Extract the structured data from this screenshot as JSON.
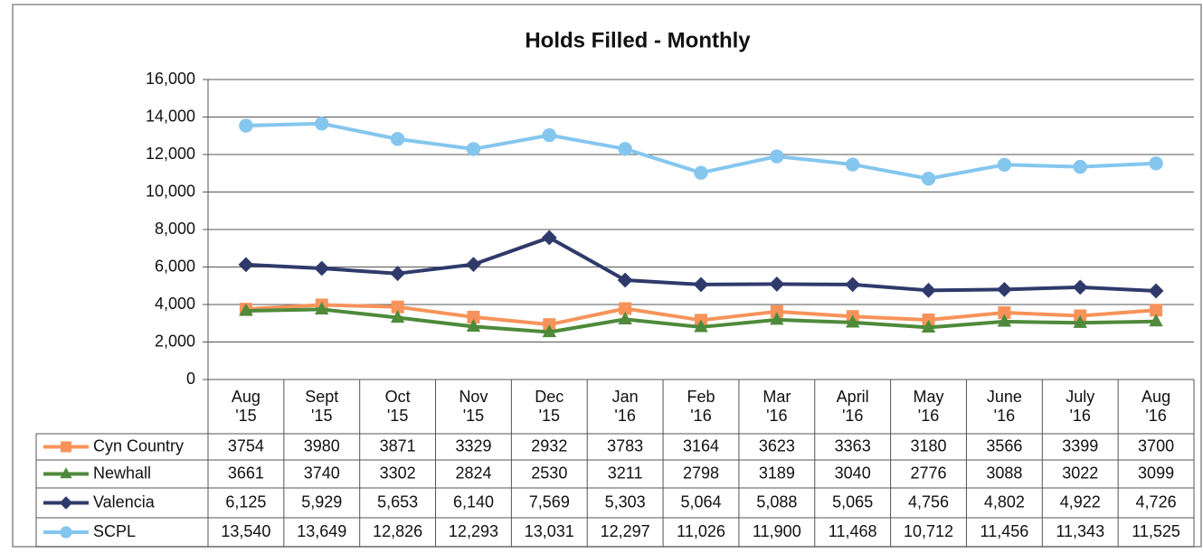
{
  "chart_data": {
    "type": "line",
    "title": "Holds Filled - Monthly",
    "categories": [
      "Aug '15",
      "Sept '15",
      "Oct '15",
      "Nov '15",
      "Dec '15",
      "Jan '16",
      "Feb '16",
      "Mar '16",
      "April '16",
      "May '16",
      "June '16",
      "July '16",
      "Aug '16"
    ],
    "series": [
      {
        "name": "Cyn Country",
        "color": "#f7935a",
        "marker": "square",
        "values": [
          3754,
          3980,
          3871,
          3329,
          2932,
          3783,
          3164,
          3623,
          3363,
          3180,
          3566,
          3399,
          3700
        ]
      },
      {
        "name": "Newhall",
        "color": "#4e8a3a",
        "marker": "triangle",
        "values": [
          3661,
          3740,
          3302,
          2824,
          2530,
          3211,
          2798,
          3189,
          3040,
          2776,
          3088,
          3022,
          3099
        ]
      },
      {
        "name": "Valencia",
        "color": "#2f3a6b",
        "marker": "diamond",
        "values": [
          6125,
          5929,
          5653,
          6140,
          7569,
          5303,
          5064,
          5088,
          5065,
          4756,
          4802,
          4922,
          4726
        ],
        "value_labels": [
          "6,125",
          "5,929",
          "5,653",
          "6,140",
          "7,569",
          "5,303",
          "5,064",
          "5,088",
          "5,065",
          "4,756",
          "4,802",
          "4,922",
          "4,726"
        ]
      },
      {
        "name": "SCPL",
        "color": "#84c6ee",
        "marker": "circle",
        "values": [
          13540,
          13649,
          12826,
          12293,
          13031,
          12297,
          11026,
          11900,
          11468,
          10712,
          11456,
          11343,
          11525
        ],
        "value_labels": [
          "13,540",
          "13,649",
          "12,826",
          "12,293",
          "13,031",
          "12,297",
          "11,026",
          "11,900",
          "11,468",
          "10,712",
          "11,456",
          "11,343",
          "11,525"
        ]
      }
    ],
    "ylim": [
      0,
      16000
    ],
    "yticks": [
      0,
      {
        "value": 2000,
        "label": "2,000"
      },
      {
        "value": 4000,
        "label": "4,000"
      },
      {
        "value": 6000,
        "label": "6,000"
      },
      {
        "value": 8000,
        "label": "8,000"
      },
      {
        "value": 10000,
        "label": "10,000"
      },
      {
        "value": 12000,
        "label": "12,000"
      },
      {
        "value": 14000,
        "label": "14,000"
      },
      {
        "value": 16000,
        "label": "16,000"
      }
    ],
    "grid": true
  }
}
